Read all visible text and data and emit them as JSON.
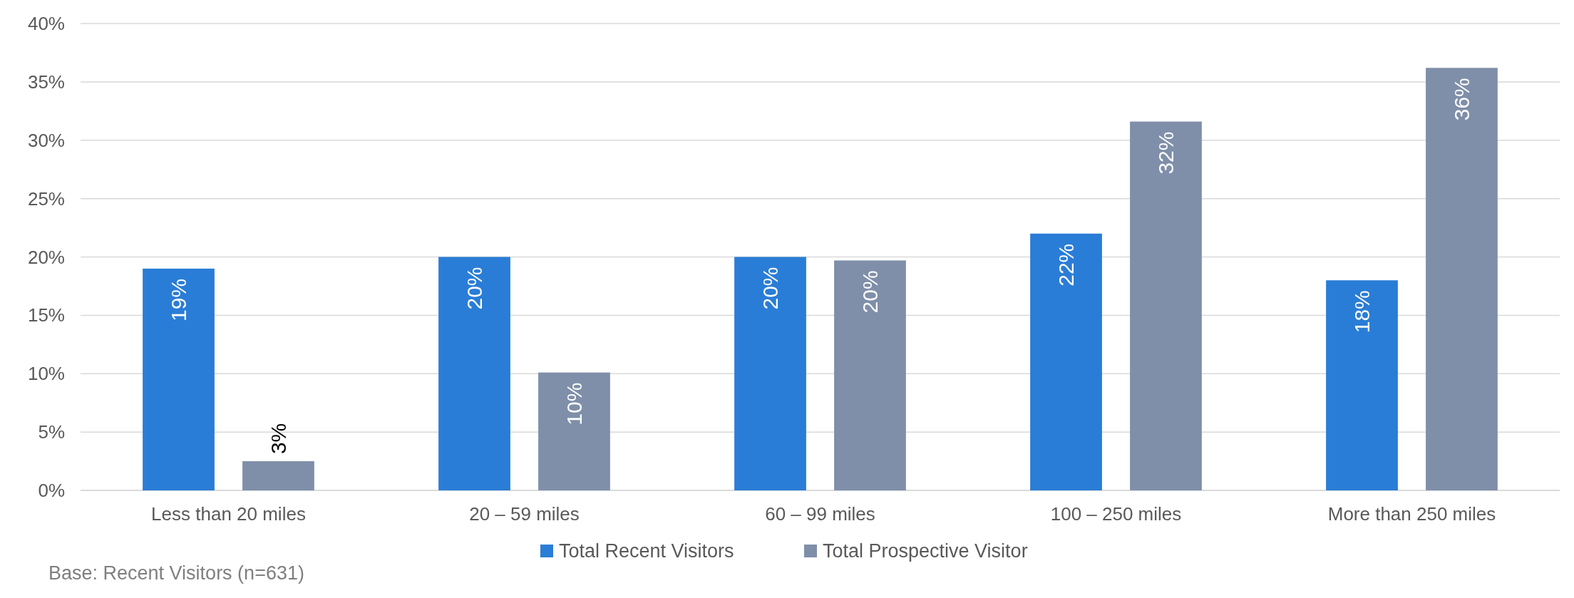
{
  "chart_data": {
    "type": "bar",
    "categories": [
      "Less than 20 miles",
      "20 – 59 miles",
      "60 – 99 miles",
      "100 – 250 miles",
      "More than 250 miles"
    ],
    "series": [
      {
        "name": "Total Recent Visitors",
        "color": "#2a7dd6",
        "values": [
          19,
          20,
          20,
          22,
          18
        ],
        "value_labels": [
          "19%",
          "20%",
          "20%",
          "22%",
          "18%"
        ]
      },
      {
        "name": "Total Prospective Visitor",
        "color": "#7f8fa9",
        "values": [
          2.5,
          10.1,
          19.7,
          31.6,
          36.2
        ],
        "value_labels": [
          "3%",
          "10%",
          "20%",
          "32%",
          "36%"
        ]
      }
    ],
    "ylim": [
      0,
      40
    ],
    "yticks": [
      {
        "value": 0,
        "label": "0%"
      },
      {
        "value": 5,
        "label": "5%"
      },
      {
        "value": 10,
        "label": "10%"
      },
      {
        "value": 15,
        "label": "15%"
      },
      {
        "value": 20,
        "label": "20%"
      },
      {
        "value": 25,
        "label": "25%"
      },
      {
        "value": 30,
        "label": "30%"
      },
      {
        "value": 35,
        "label": "35%"
      },
      {
        "value": 40,
        "label": "40%"
      }
    ],
    "grid": "y",
    "legend": "bottom",
    "annotations": [
      "Base: Recent Visitors (n=631)"
    ]
  }
}
